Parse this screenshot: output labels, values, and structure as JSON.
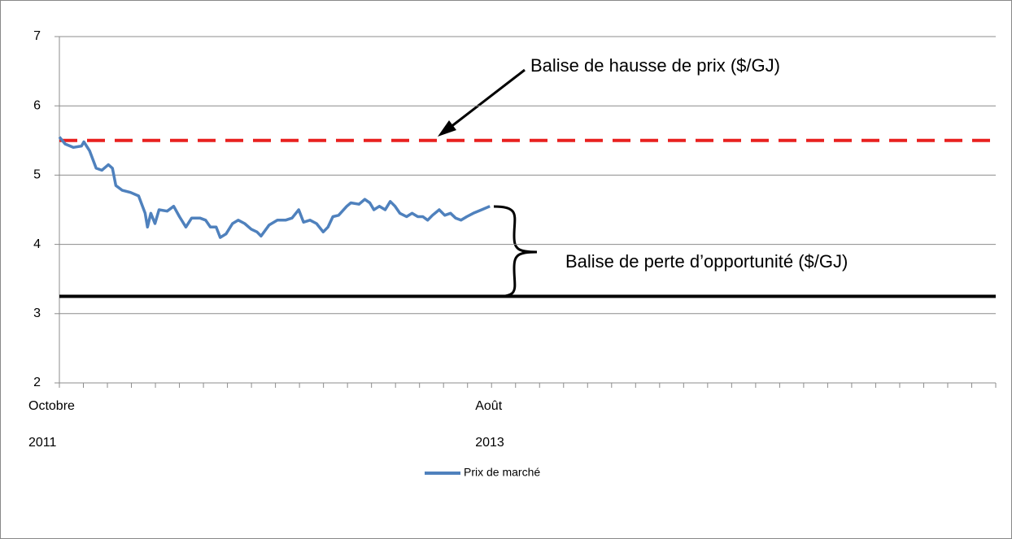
{
  "chart_data": {
    "type": "line",
    "xlim": [
      0,
      39
    ],
    "xticks": [
      {
        "value": 0,
        "label": [
          "Octobre",
          "2011"
        ]
      },
      {
        "value": 1,
        "label": null
      },
      {
        "value": 2,
        "label": null
      },
      {
        "value": 3,
        "label": null
      },
      {
        "value": 4,
        "label": null
      },
      {
        "value": 5,
        "label": null
      },
      {
        "value": 6,
        "label": null
      },
      {
        "value": 7,
        "label": null
      },
      {
        "value": 8,
        "label": null
      },
      {
        "value": 9,
        "label": null
      },
      {
        "value": 10,
        "label": null
      },
      {
        "value": 11,
        "label": null
      },
      {
        "value": 12,
        "label": null
      },
      {
        "value": 13,
        "label": null
      },
      {
        "value": 14,
        "label": null
      },
      {
        "value": 15,
        "label": null
      },
      {
        "value": 16,
        "label": null
      },
      {
        "value": 17,
        "label": null
      },
      {
        "value": 18,
        "label": [
          "Août",
          "2013"
        ]
      },
      {
        "value": 19,
        "label": null
      },
      {
        "value": 20,
        "label": null
      },
      {
        "value": 21,
        "label": null
      },
      {
        "value": 22,
        "label": null
      },
      {
        "value": 23,
        "label": null
      },
      {
        "value": 24,
        "label": null
      },
      {
        "value": 25,
        "label": null
      },
      {
        "value": 26,
        "label": null
      },
      {
        "value": 27,
        "label": null
      },
      {
        "value": 28,
        "label": null
      },
      {
        "value": 29,
        "label": null
      },
      {
        "value": 30,
        "label": null
      },
      {
        "value": 31,
        "label": null
      },
      {
        "value": 32,
        "label": null
      },
      {
        "value": 33,
        "label": null
      },
      {
        "value": 34,
        "label": null
      },
      {
        "value": 35,
        "label": null
      },
      {
        "value": 36,
        "label": null
      },
      {
        "value": 37,
        "label": null
      },
      {
        "value": 38,
        "label": null
      },
      {
        "value": 39,
        "label": null
      }
    ],
    "ylim": [
      2,
      7
    ],
    "yticks": [
      2,
      3,
      4,
      5,
      6,
      7
    ],
    "grid": true,
    "legend": "bottom",
    "series": [
      {
        "name": "Prix de marché",
        "color": "#4f81bd",
        "x": [
          0,
          0.24,
          0.58,
          0.92,
          1.02,
          1.26,
          1.53,
          1.77,
          2.04,
          2.21,
          2.35,
          2.62,
          2.96,
          3.3,
          3.57,
          3.67,
          3.81,
          3.98,
          4.15,
          4.49,
          4.76,
          5.0,
          5.27,
          5.51,
          5.85,
          6.09,
          6.29,
          6.53,
          6.7,
          6.94,
          7.21,
          7.45,
          7.72,
          7.99,
          8.23,
          8.4,
          8.74,
          9.08,
          9.42,
          9.69,
          9.97,
          10.17,
          10.44,
          10.71,
          10.99,
          11.19,
          11.39,
          11.63,
          11.97,
          12.14,
          12.48,
          12.72,
          12.93,
          13.1,
          13.33,
          13.57,
          13.78,
          13.98,
          14.18,
          14.46,
          14.69,
          14.93,
          15.14,
          15.34,
          15.54,
          15.82,
          16.05,
          16.29,
          16.5,
          16.73,
          16.97,
          17.24,
          17.59,
          17.93
        ],
        "values": [
          5.55,
          5.45,
          5.4,
          5.42,
          5.48,
          5.35,
          5.1,
          5.07,
          5.15,
          5.1,
          4.85,
          4.78,
          4.75,
          4.7,
          4.45,
          4.25,
          4.45,
          4.3,
          4.5,
          4.48,
          4.55,
          4.4,
          4.25,
          4.38,
          4.38,
          4.35,
          4.25,
          4.25,
          4.1,
          4.15,
          4.3,
          4.35,
          4.3,
          4.22,
          4.18,
          4.12,
          4.28,
          4.35,
          4.35,
          4.38,
          4.5,
          4.32,
          4.35,
          4.3,
          4.18,
          4.25,
          4.4,
          4.42,
          4.55,
          4.6,
          4.58,
          4.65,
          4.6,
          4.5,
          4.55,
          4.5,
          4.62,
          4.55,
          4.45,
          4.4,
          4.45,
          4.4,
          4.4,
          4.35,
          4.42,
          4.5,
          4.42,
          4.45,
          4.38,
          4.35,
          4.4,
          4.45,
          4.5,
          4.55
        ]
      }
    ],
    "reference_lines": [
      {
        "value": 5.5,
        "color": "#e8201f",
        "dash": true
      },
      {
        "value": 3.25,
        "color": "#000000",
        "dash": false
      }
    ],
    "annotations": [
      {
        "text": "Balise de hausse de prix ($/GJ)"
      },
      {
        "text": "Balise de perte d’opportunité ($/GJ)"
      }
    ]
  }
}
